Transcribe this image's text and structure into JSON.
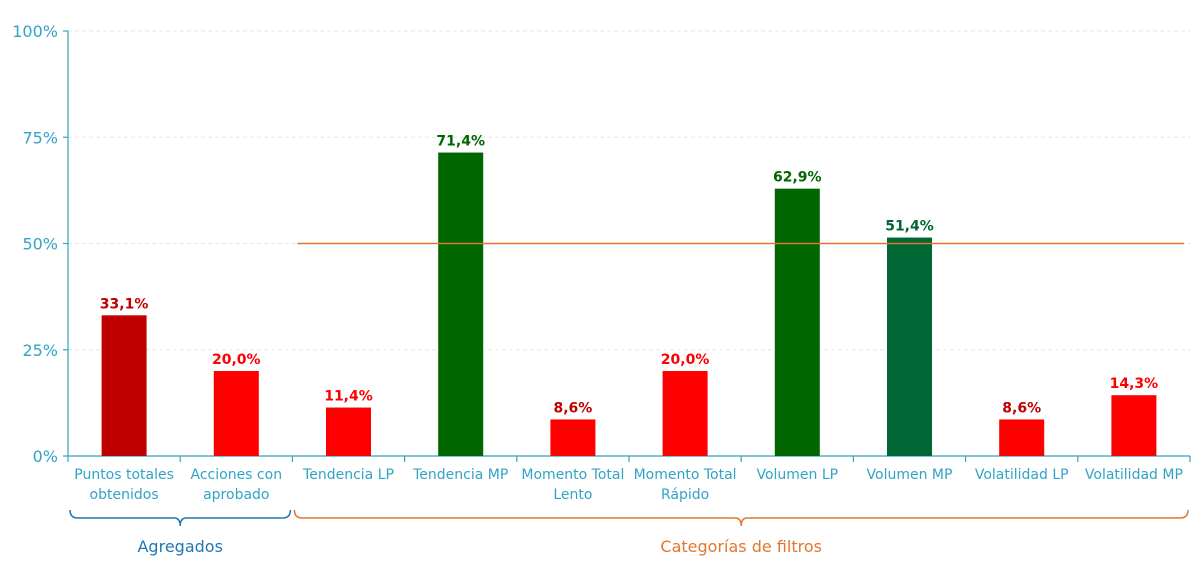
{
  "colors": {
    "axis": "#31a3c6",
    "grid": "#e6e6e6",
    "reference_line": "#e1772f",
    "agregados_group": "#1f77b4",
    "filtros_group": "#e1772f",
    "red": "#ff0000",
    "dark_red": "#c00000",
    "green": "#006600",
    "dark_green": "#006633"
  },
  "chart_data": {
    "type": "bar",
    "categories": [
      [
        "Puntos totales",
        "obtenidos"
      ],
      [
        "Acciones con",
        "aprobado"
      ],
      [
        "Tendencia LP"
      ],
      [
        "Tendencia MP"
      ],
      [
        "Momento Total",
        "Lento"
      ],
      [
        "Momento Total",
        "Rápido"
      ],
      [
        "Volumen LP"
      ],
      [
        "Volumen MP"
      ],
      [
        "Volatilidad LP"
      ],
      [
        "Volatilidad MP"
      ]
    ],
    "values": [
      33.1,
      20.0,
      11.4,
      71.4,
      8.6,
      20.0,
      62.9,
      51.4,
      8.6,
      14.3
    ],
    "value_labels": [
      "33,1%",
      "20,0%",
      "11,4%",
      "71,4%",
      "8,6%",
      "20,0%",
      "62,9%",
      "51,4%",
      "8,6%",
      "14,3%"
    ],
    "bar_colors": [
      "#c00000",
      "#ff0000",
      "#ff0000",
      "#006600",
      "#ff0000",
      "#ff0000",
      "#006600",
      "#006633",
      "#ff0000",
      "#ff0000"
    ],
    "label_colors": [
      "#c00000",
      "#ff0000",
      "#ff0000",
      "#006600",
      "#c00000",
      "#ff0000",
      "#006600",
      "#006633",
      "#c00000",
      "#ff0000"
    ],
    "ylim": [
      0,
      100
    ],
    "yticks": [
      0,
      25,
      50,
      75,
      100
    ],
    "ytick_labels": [
      "0%",
      "25%",
      "50%",
      "75%",
      "100%"
    ],
    "reference_line": {
      "value": 50,
      "from_category": 2,
      "to_category": 9
    },
    "groups": [
      {
        "label": "Agregados",
        "from_category": 0,
        "to_category": 1
      },
      {
        "label": "Categorías de filtros",
        "from_category": 2,
        "to_category": 9
      }
    ],
    "grid": true,
    "legend": "none",
    "title": "",
    "xlabel": "",
    "ylabel": ""
  }
}
